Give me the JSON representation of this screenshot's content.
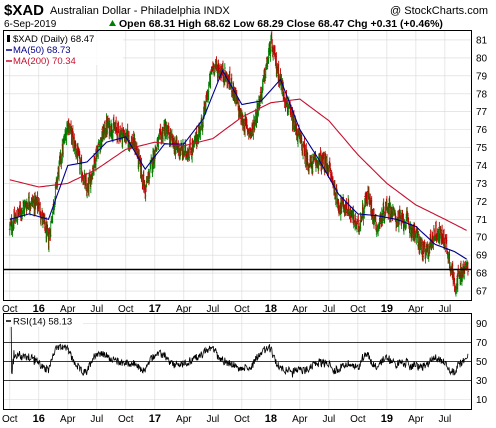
{
  "header": {
    "symbol": "$XAD",
    "name": "Australian Dollar - Philadelphia INDX",
    "watermark": "@ StockCharts.com",
    "date": "6-Sep-2019",
    "quote": "Open 68.31  High 68.62  Low 68.29  Close 68.47  Chg +0.31 (+0.46%)",
    "quote_up_icon": "up-triangle-icon",
    "quote_up_color": "#008000"
  },
  "colors": {
    "up": "#008000",
    "down": "#c00000",
    "ma50": "#00008b",
    "ma200": "#c8102e",
    "support": "#000000",
    "grid": "#d8d8d8"
  },
  "chart_data": [
    {
      "type": "ohlc",
      "legend": [
        {
          "label": "$XAD (Daily) 68.47",
          "color": "#000000"
        },
        {
          "label": "MA(50) 68.73",
          "color": "#00008b"
        },
        {
          "label": "MA(200) 70.34",
          "color": "#c8102e"
        }
      ],
      "ylim": [
        66.5,
        81.5
      ],
      "y_ticks": [
        67,
        68,
        69,
        70,
        71,
        72,
        73,
        74,
        75,
        76,
        77,
        78,
        79,
        80,
        81
      ],
      "x_ticks": [
        "Oct",
        "16",
        "Apr",
        "Jul",
        "Oct",
        "17",
        "Apr",
        "Jul",
        "Oct",
        "18",
        "Apr",
        "Jul",
        "Oct",
        "19",
        "Apr",
        "Jul"
      ],
      "x_months": [
        0,
        3,
        6,
        9,
        12,
        15,
        18,
        21,
        24,
        27,
        30,
        33,
        36,
        39,
        42,
        45
      ],
      "x_range_months": [
        -0.6,
        47.7
      ],
      "series_close_monthly": [
        {
          "m": 0,
          "c": 70.5
        },
        {
          "m": 1,
          "c": 71.4
        },
        {
          "m": 2,
          "c": 72.0
        },
        {
          "m": 3,
          "c": 71.8
        },
        {
          "m": 4,
          "c": 69.8
        },
        {
          "m": 5,
          "c": 73.6
        },
        {
          "m": 6,
          "c": 76.4
        },
        {
          "m": 7,
          "c": 74.6
        },
        {
          "m": 8,
          "c": 72.5
        },
        {
          "m": 9,
          "c": 74.8
        },
        {
          "m": 10,
          "c": 76.2
        },
        {
          "m": 11,
          "c": 76.0
        },
        {
          "m": 12,
          "c": 75.6
        },
        {
          "m": 13,
          "c": 75.1
        },
        {
          "m": 14,
          "c": 72.6
        },
        {
          "m": 15,
          "c": 74.8
        },
        {
          "m": 16,
          "c": 76.1
        },
        {
          "m": 17,
          "c": 75.1
        },
        {
          "m": 18,
          "c": 74.7
        },
        {
          "m": 19,
          "c": 75.0
        },
        {
          "m": 20,
          "c": 76.6
        },
        {
          "m": 21,
          "c": 79.6
        },
        {
          "m": 22,
          "c": 79.2
        },
        {
          "m": 23,
          "c": 78.4
        },
        {
          "m": 24,
          "c": 76.5
        },
        {
          "m": 25,
          "c": 75.8
        },
        {
          "m": 26,
          "c": 78.0
        },
        {
          "m": 27,
          "c": 80.8
        },
        {
          "m": 28,
          "c": 78.7
        },
        {
          "m": 29,
          "c": 76.8
        },
        {
          "m": 30,
          "c": 75.4
        },
        {
          "m": 31,
          "c": 74.0
        },
        {
          "m": 32,
          "c": 74.3
        },
        {
          "m": 33,
          "c": 73.9
        },
        {
          "m": 34,
          "c": 71.8
        },
        {
          "m": 35,
          "c": 71.6
        },
        {
          "m": 36,
          "c": 70.5
        },
        {
          "m": 37,
          "c": 72.4
        },
        {
          "m": 38,
          "c": 70.5
        },
        {
          "m": 39,
          "c": 71.8
        },
        {
          "m": 40,
          "c": 71.0
        },
        {
          "m": 41,
          "c": 70.9
        },
        {
          "m": 42,
          "c": 70.1
        },
        {
          "m": 43,
          "c": 69.0
        },
        {
          "m": 44,
          "c": 70.3
        },
        {
          "m": 45,
          "c": 69.9
        },
        {
          "m": 46,
          "c": 67.4
        },
        {
          "m": 47.4,
          "c": 68.47
        }
      ],
      "ma50_monthly": [
        {
          "m": 0,
          "c": 71.0
        },
        {
          "m": 2,
          "c": 71.3
        },
        {
          "m": 4,
          "c": 71.0
        },
        {
          "m": 6,
          "c": 74.0
        },
        {
          "m": 8,
          "c": 74.2
        },
        {
          "m": 10,
          "c": 75.3
        },
        {
          "m": 12,
          "c": 75.6
        },
        {
          "m": 14,
          "c": 73.8
        },
        {
          "m": 16,
          "c": 75.2
        },
        {
          "m": 18,
          "c": 75.2
        },
        {
          "m": 20,
          "c": 76.6
        },
        {
          "m": 22,
          "c": 79.3
        },
        {
          "m": 24,
          "c": 77.4
        },
        {
          "m": 26,
          "c": 77.6
        },
        {
          "m": 28,
          "c": 78.8
        },
        {
          "m": 30,
          "c": 76.0
        },
        {
          "m": 32,
          "c": 74.3
        },
        {
          "m": 34,
          "c": 72.4
        },
        {
          "m": 36,
          "c": 71.3
        },
        {
          "m": 38,
          "c": 71.2
        },
        {
          "m": 40,
          "c": 71.0
        },
        {
          "m": 42,
          "c": 70.6
        },
        {
          "m": 44,
          "c": 69.6
        },
        {
          "m": 46,
          "c": 69.2
        },
        {
          "m": 47.4,
          "c": 68.73
        }
      ],
      "ma200_monthly": [
        {
          "m": 0,
          "c": 73.2
        },
        {
          "m": 3,
          "c": 72.8
        },
        {
          "m": 6,
          "c": 73.0
        },
        {
          "m": 9,
          "c": 73.8
        },
        {
          "m": 12,
          "c": 74.9
        },
        {
          "m": 15,
          "c": 75.3
        },
        {
          "m": 18,
          "c": 75.1
        },
        {
          "m": 21,
          "c": 75.5
        },
        {
          "m": 24,
          "c": 76.7
        },
        {
          "m": 27,
          "c": 77.5
        },
        {
          "m": 30,
          "c": 77.7
        },
        {
          "m": 33,
          "c": 76.5
        },
        {
          "m": 36,
          "c": 74.6
        },
        {
          "m": 39,
          "c": 73.0
        },
        {
          "m": 42,
          "c": 71.8
        },
        {
          "m": 45,
          "c": 71.0
        },
        {
          "m": 47.4,
          "c": 70.34
        }
      ],
      "support_level": 68.2
    },
    {
      "type": "line",
      "legend": [
        {
          "label": "RSI(14) 58.13",
          "color": "#000000"
        }
      ],
      "ylim": [
        0,
        100
      ],
      "y_ticks": [
        10,
        30,
        50,
        70,
        90
      ],
      "reference_lines": [
        30,
        50,
        70
      ],
      "x_ticks": [
        "Oct",
        "16",
        "Apr",
        "Jul",
        "Oct",
        "17",
        "Apr",
        "Jul",
        "Oct",
        "18",
        "Apr",
        "Jul",
        "Oct",
        "19",
        "Apr",
        "Jul"
      ],
      "x_months": [
        0,
        3,
        6,
        9,
        12,
        15,
        18,
        21,
        24,
        27,
        30,
        33,
        36,
        39,
        42,
        45
      ],
      "x_range_months": [
        -0.6,
        47.7
      ],
      "last_value": 58.13
    }
  ]
}
